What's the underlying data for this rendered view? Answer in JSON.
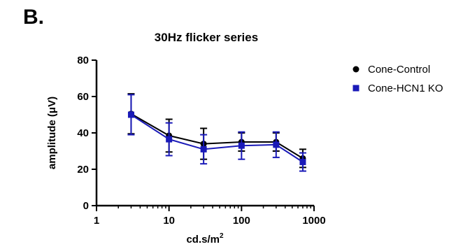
{
  "panel_label": "B.",
  "chart_data": {
    "type": "line",
    "title": "30Hz flicker series",
    "xlabel": "cd.s/m",
    "xlabel_superscript": "2",
    "ylabel": "amplitude (μV)",
    "x_scale": "log",
    "xlim": [
      1,
      1000
    ],
    "ylim": [
      0,
      80
    ],
    "x_ticks": [
      1,
      10,
      100,
      1000
    ],
    "x_tick_labels": [
      "1",
      "10",
      "100",
      "1000"
    ],
    "y_ticks": [
      0,
      20,
      40,
      60,
      80
    ],
    "y_tick_labels": [
      "0",
      "20",
      "40",
      "60",
      "80"
    ],
    "grid": false,
    "legend_position": "top-right",
    "x": [
      3,
      10,
      30,
      100,
      300,
      700
    ],
    "series": [
      {
        "name": "Cone-Control",
        "color": "#000000",
        "marker": "circle",
        "values": [
          50.5,
          38.5,
          34,
          35,
          35,
          26
        ],
        "error": [
          11,
          9,
          8.5,
          5,
          5,
          5
        ]
      },
      {
        "name": "Cone-HCN1 KO",
        "color": "#1a1ab8",
        "marker": "square",
        "values": [
          50,
          36.5,
          31,
          33,
          33.5,
          24
        ],
        "error": [
          11,
          9,
          8,
          7.5,
          7,
          5
        ]
      }
    ]
  }
}
